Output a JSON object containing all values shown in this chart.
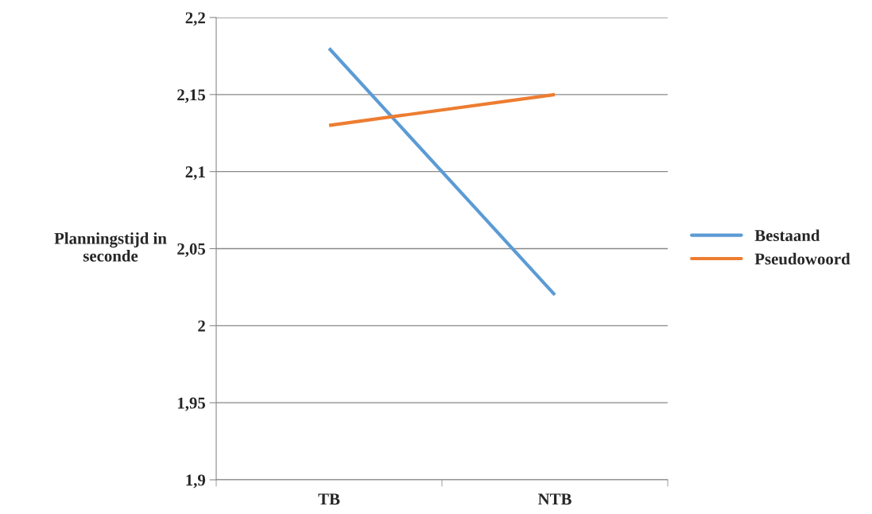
{
  "chart_data": {
    "type": "line",
    "ylabel": "Planningstijd in\nseconde",
    "categories": [
      "TB",
      "NTB"
    ],
    "series": [
      {
        "name": "Bestaand",
        "color": "#5b9bd5",
        "values": [
          2.18,
          2.02
        ]
      },
      {
        "name": "Pseudowoord",
        "color": "#ed7d31",
        "values": [
          2.13,
          2.15
        ]
      }
    ],
    "ylim": [
      1.9,
      2.2
    ],
    "yticks": [
      {
        "value": 1.9,
        "label": "1,9"
      },
      {
        "value": 1.95,
        "label": "1,95"
      },
      2,
      {
        "value": 2.05,
        "label": "2,05"
      },
      {
        "value": 2.1,
        "label": "2,1"
      },
      {
        "value": 2.15,
        "label": "2,15"
      },
      {
        "value": 2.2,
        "label": "2,2"
      }
    ],
    "grid": "y",
    "legend": "right",
    "marker": "none",
    "line_style": "solid"
  }
}
